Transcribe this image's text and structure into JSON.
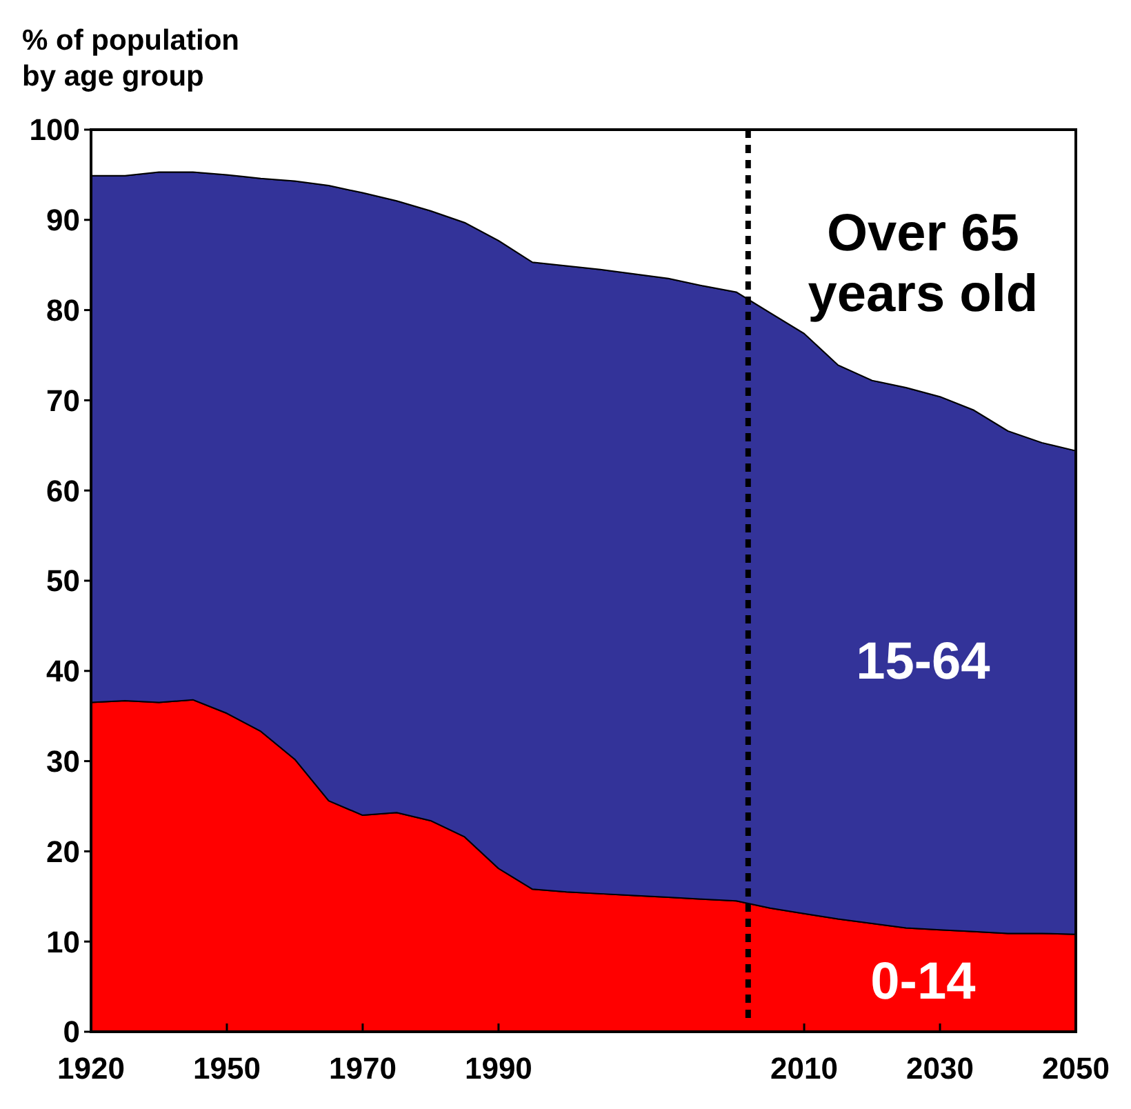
{
  "chart_data": {
    "type": "area",
    "stacked": true,
    "ylabel": "% of population by age group",
    "categories": [
      "1920",
      null,
      null,
      null,
      "1950",
      null,
      null,
      null,
      "1970",
      null,
      null,
      null,
      "1990",
      null,
      null,
      null,
      null,
      null,
      null,
      null,
      null,
      "2010",
      null,
      null,
      null,
      "2030",
      null,
      null,
      null,
      "2050"
    ],
    "series": [
      {
        "name": "0-14",
        "color": "#ff0000",
        "values": [
          36.5,
          36.7,
          36.5,
          36.8,
          35.3,
          33.3,
          30.2,
          25.6,
          24.0,
          24.3,
          23.4,
          21.6,
          18.1,
          15.8,
          15.5,
          15.3,
          15.1,
          14.9,
          14.7,
          14.5,
          13.7,
          13.1,
          12.5,
          12.0,
          11.5,
          11.3,
          11.1,
          10.9,
          10.9,
          10.8
        ]
      },
      {
        "name": "15-64",
        "color": "#333399",
        "values": [
          58.4,
          58.2,
          58.8,
          58.5,
          59.7,
          61.3,
          64.1,
          68.2,
          69.0,
          67.8,
          67.6,
          68.1,
          69.6,
          69.5,
          69.4,
          69.2,
          68.9,
          68.6,
          68.0,
          67.5,
          66.0,
          64.3,
          61.4,
          60.2,
          59.9,
          59.1,
          57.8,
          55.7,
          54.4,
          53.6
        ]
      },
      {
        "name": "Over 65 years old",
        "color": "#ffffff",
        "values": [
          5.1,
          5.1,
          4.7,
          4.7,
          5.0,
          5.4,
          5.7,
          6.2,
          7.0,
          7.9,
          9.0,
          10.3,
          12.3,
          14.7,
          15.1,
          15.5,
          16.0,
          16.5,
          17.3,
          18.0,
          20.3,
          22.6,
          26.1,
          27.8,
          28.6,
          29.6,
          31.1,
          33.4,
          34.7,
          35.6
        ]
      }
    ],
    "ylim": [
      0,
      100
    ],
    "yticks": [
      0,
      10,
      20,
      30,
      40,
      50,
      60,
      70,
      80,
      90,
      100
    ],
    "legend": false
  }
}
